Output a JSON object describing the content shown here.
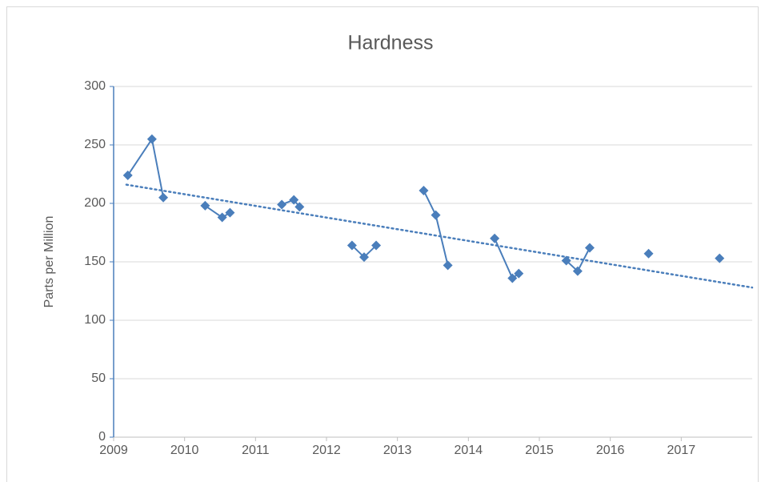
{
  "chart_data": {
    "type": "line",
    "title": "Hardness",
    "y_label": "Parts per Million",
    "color": "#4a7ebb",
    "marker": "diamond",
    "grid": true,
    "xlim": [
      2009,
      2018
    ],
    "xticks": [
      2009,
      2010,
      2011,
      2012,
      2013,
      2014,
      2015,
      2016,
      2017
    ],
    "ylim": [
      0,
      300
    ],
    "yticks": [
      0,
      50,
      100,
      150,
      200,
      250,
      300
    ],
    "series": [
      {
        "x": [
          2009.2,
          2009.54,
          2009.7
        ],
        "values": [
          224,
          255,
          205
        ]
      },
      {
        "x": [
          2010.29,
          2010.53,
          2010.64
        ],
        "values": [
          198,
          188,
          192
        ]
      },
      {
        "x": [
          2011.37,
          2011.54,
          2011.62
        ],
        "values": [
          199,
          203,
          197
        ]
      },
      {
        "x": [
          2012.36,
          2012.53,
          2012.7
        ],
        "values": [
          164,
          154,
          164
        ]
      },
      {
        "x": [
          2013.37,
          2013.54,
          2013.71
        ],
        "values": [
          211,
          190,
          147
        ]
      },
      {
        "x": [
          2014.37,
          2014.62,
          2014.71
        ],
        "values": [
          170,
          136,
          140
        ]
      },
      {
        "x": [
          2015.38,
          2015.54,
          2015.71
        ],
        "values": [
          151,
          142,
          162
        ]
      },
      {
        "x": [
          2016.54
        ],
        "values": [
          157
        ]
      },
      {
        "x": [
          2017.54
        ],
        "values": [
          153
        ]
      }
    ],
    "trendline": {
      "x": [
        2009.18,
        2018
      ],
      "values": [
        216,
        128
      ]
    }
  }
}
